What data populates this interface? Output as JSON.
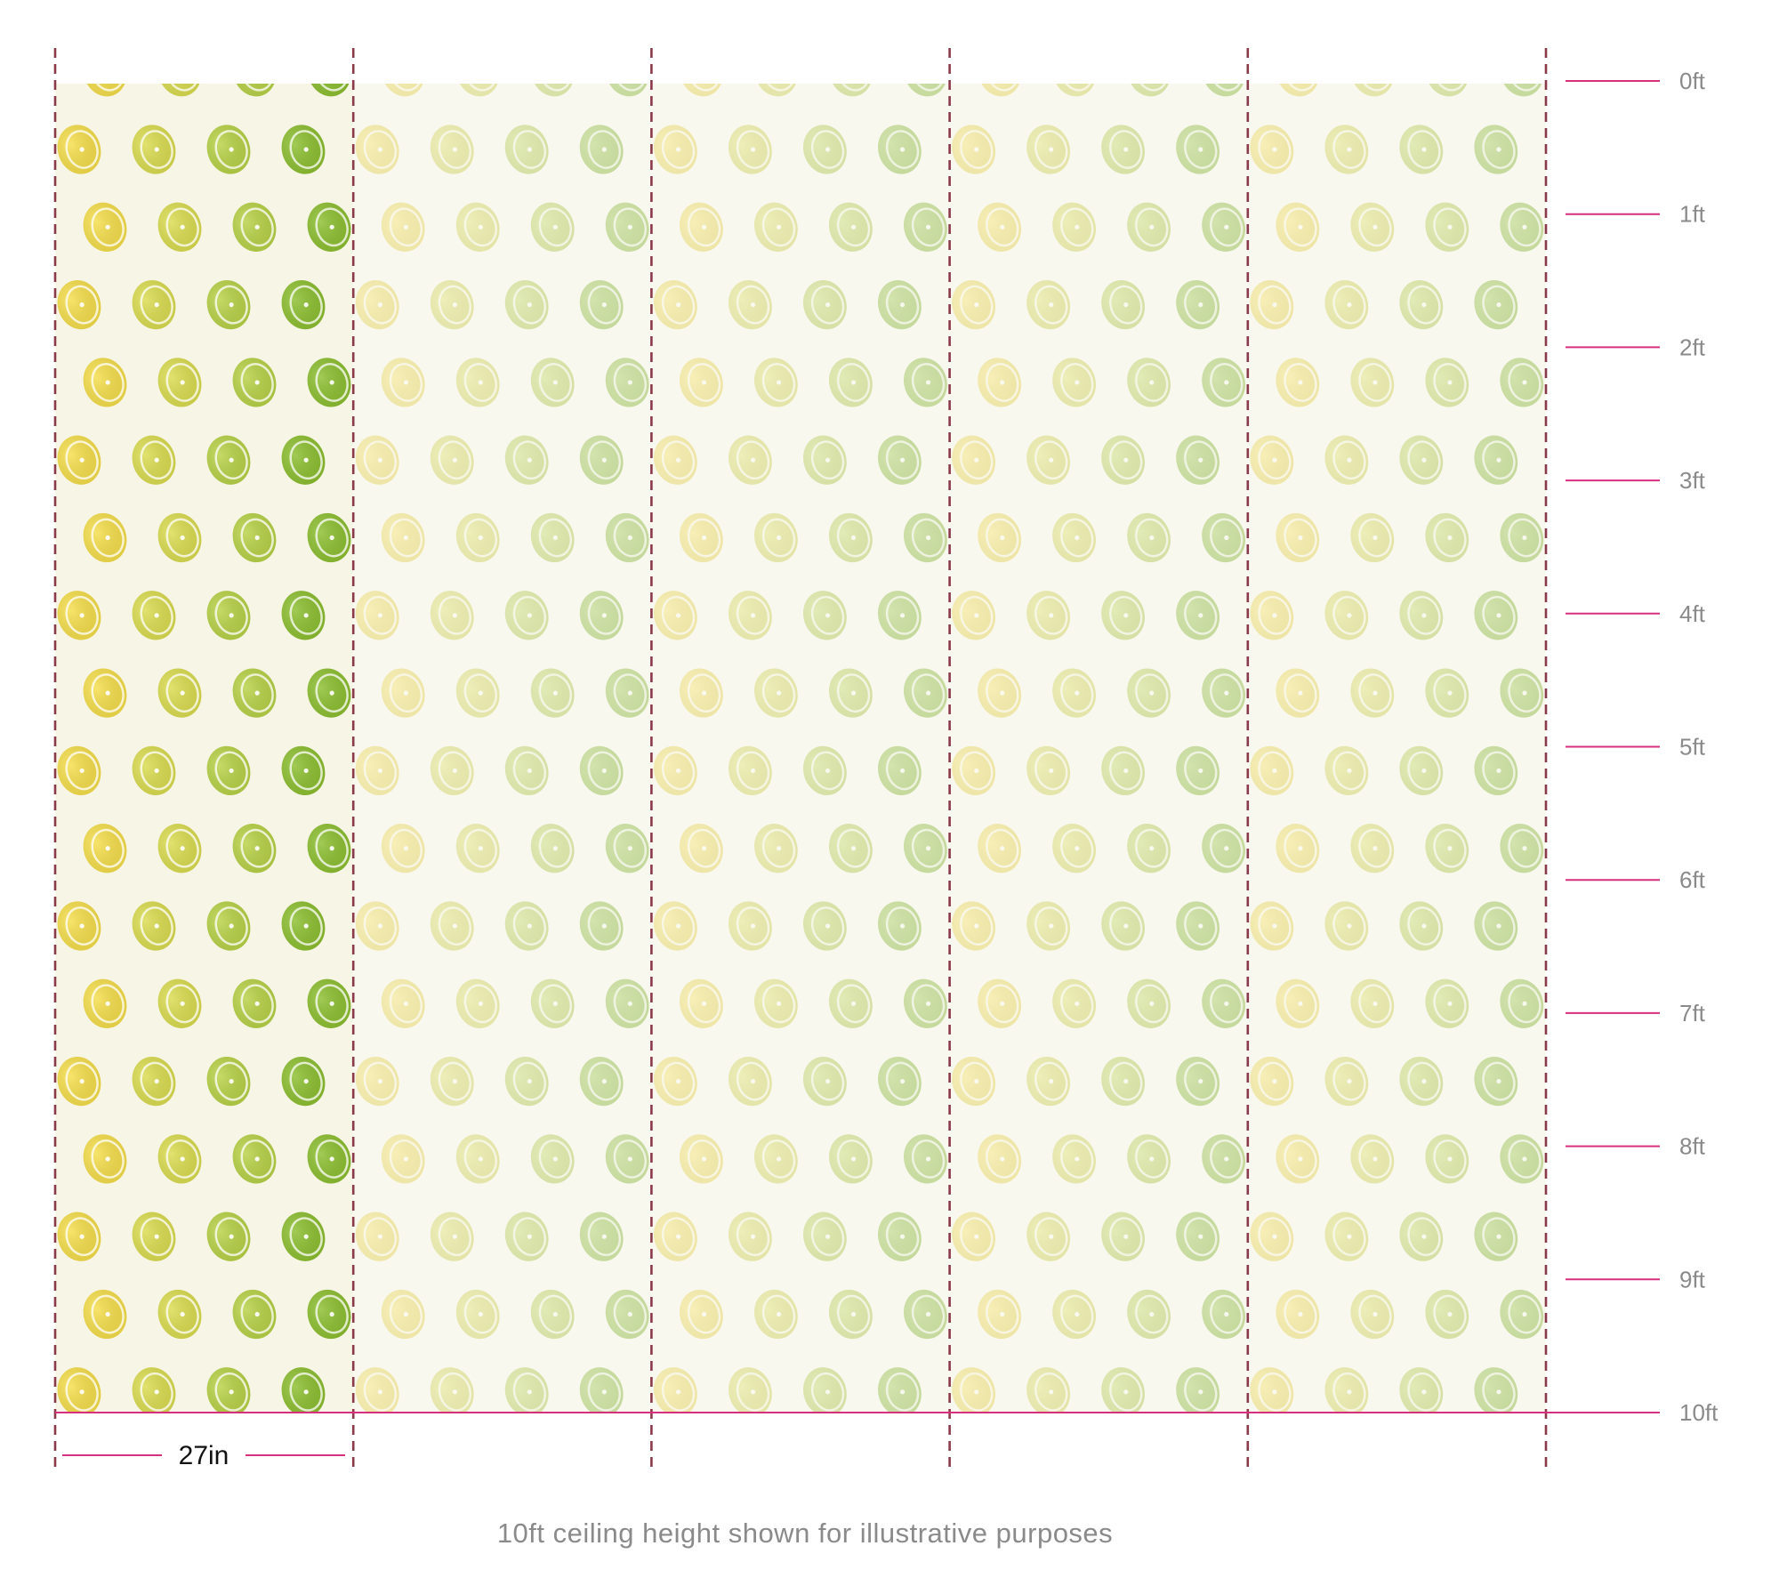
{
  "diagram": {
    "height_labels": [
      "0ft",
      "1ft",
      "2ft",
      "3ft",
      "4ft",
      "5ft",
      "6ft",
      "7ft",
      "8ft",
      "9ft",
      "10ft"
    ],
    "panel_width_label": "27in",
    "panel_count": 5,
    "highlighted_panel": 1,
    "pattern": "citrus-halves-icon",
    "colors": {
      "marker_line": "#d6307e",
      "panel_divider": "#8b3a4a",
      "panel_background": "#f7f5e6",
      "faded_panel_background": "#f8f8ef",
      "fruit_yellow": "#f5de4a",
      "fruit_lime": "#cddb52",
      "fruit_green": "#8cbf2f",
      "text_gray": "#8a8a8a"
    }
  },
  "caption": "10ft ceiling height shown for illustrative purposes"
}
